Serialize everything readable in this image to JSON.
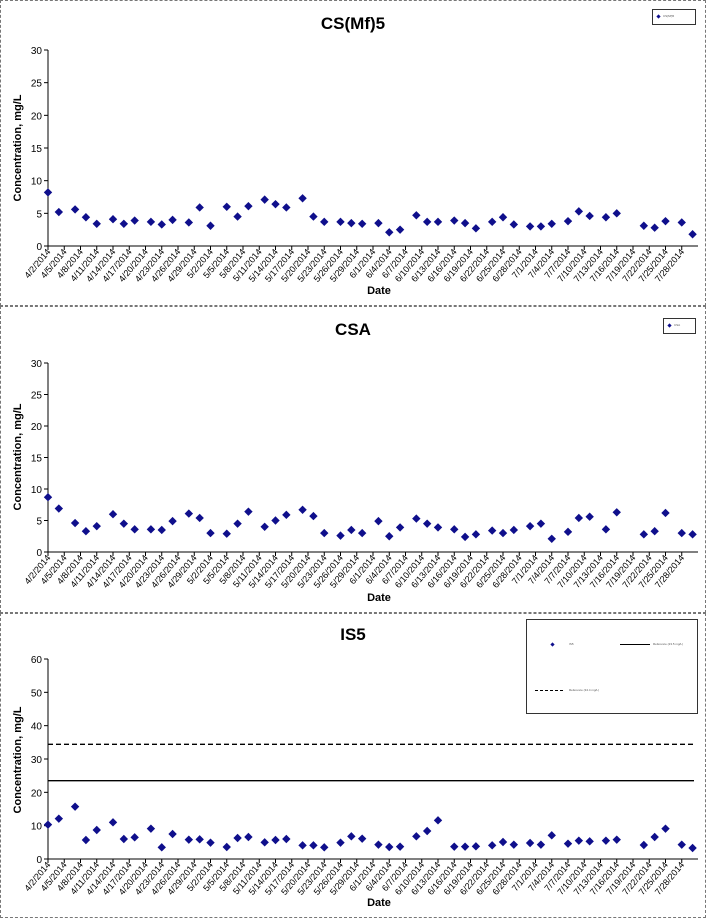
{
  "charts": [
    {
      "title": "CS(Mf)5",
      "ylabel": "Concentration, mg/L",
      "xlabel": "Date",
      "legend": {
        "series_label": "CS(Mf)5"
      },
      "y_ticks": [
        "0",
        "5",
        "10",
        "15",
        "20",
        "25",
        "30"
      ]
    },
    {
      "title": "CSA",
      "ylabel": "Concentration, mg/L",
      "xlabel": "Date",
      "legend": {
        "series_label": "CSA"
      },
      "y_ticks": [
        "0",
        "5",
        "10",
        "15",
        "20",
        "25",
        "30"
      ]
    },
    {
      "title": "IS5",
      "ylabel": "Concentration, mg/L",
      "xlabel": "Date",
      "legend": {
        "series_label": "IS5",
        "solid_label": "Reference (23.5 mg/L)",
        "dashed_label": "Reference (34.4 mg/L)"
      },
      "y_ticks": [
        "0",
        "10",
        "20",
        "30",
        "40",
        "50",
        "60"
      ]
    }
  ],
  "x_tick_labels": [
    "4/2/2014",
    "4/5/2014",
    "4/8/2014",
    "4/11/2014",
    "4/14/2014",
    "4/17/2014",
    "4/20/2014",
    "4/23/2014",
    "4/26/2014",
    "4/29/2014",
    "5/2/2014",
    "5/5/2014",
    "5/8/2014",
    "5/11/2014",
    "5/14/2014",
    "5/17/2014",
    "5/20/2014",
    "5/23/2014",
    "5/26/2014",
    "5/29/2014",
    "6/1/2014",
    "6/4/2014",
    "6/7/2014",
    "6/10/2014",
    "6/13/2014",
    "6/16/2014",
    "6/19/2014",
    "6/22/2014",
    "6/25/2014",
    "6/28/2014",
    "7/1/2014",
    "7/4/2014",
    "7/7/2014",
    "7/10/2014",
    "7/13/2014",
    "7/16/2014",
    "7/19/2014",
    "7/22/2014",
    "7/25/2014",
    "7/28/2014"
  ],
  "chart_data": [
    {
      "type": "scatter",
      "title": "CS(Mf)5",
      "xlabel": "Date",
      "ylabel": "Concentration, mg/L",
      "ylim": [
        0,
        30
      ],
      "xlim": [
        "4/2/2014",
        "7/30/2014"
      ],
      "grid": false,
      "legend_position": "top-right",
      "marker_color": "#0f0f8c",
      "series": [
        {
          "x": [
            "4/2/2014",
            "4/4/2014",
            "4/7/2014",
            "4/9/2014",
            "4/11/2014",
            "4/14/2014",
            "4/16/2014",
            "4/18/2014",
            "4/21/2014",
            "4/23/2014",
            "4/25/2014",
            "4/28/2014",
            "4/30/2014",
            "5/2/2014",
            "5/5/2014",
            "5/7/2014",
            "5/9/2014",
            "5/12/2014",
            "5/14/2014",
            "5/16/2014",
            "5/19/2014",
            "5/21/2014",
            "5/23/2014",
            "5/26/2014",
            "5/28/2014",
            "5/30/2014",
            "6/2/2014",
            "6/4/2014",
            "6/6/2014",
            "6/9/2014",
            "6/11/2014",
            "6/13/2014",
            "6/16/2014",
            "6/18/2014",
            "6/20/2014",
            "6/23/2014",
            "6/25/2014",
            "6/27/2014",
            "6/30/2014",
            "7/2/2014",
            "7/4/2014",
            "7/7/2014",
            "7/9/2014",
            "7/11/2014",
            "7/14/2014",
            "7/16/2014",
            "7/21/2014",
            "7/23/2014",
            "7/25/2014",
            "7/28/2014",
            "7/30/2014"
          ],
          "y": [
            8.2,
            5.2,
            5.6,
            4.4,
            3.4,
            4.1,
            3.4,
            3.9,
            3.7,
            3.3,
            4.0,
            3.6,
            5.9,
            3.1,
            6.0,
            4.5,
            6.1,
            7.1,
            6.4,
            5.9,
            7.3,
            4.5,
            3.7,
            3.7,
            3.5,
            3.4,
            3.5,
            2.1,
            2.5,
            4.7,
            3.7,
            3.7,
            3.9,
            3.5,
            2.7,
            3.7,
            4.4,
            3.3,
            3.0,
            3.0,
            3.4,
            3.8,
            5.3,
            4.6,
            4.4,
            5.0,
            3.1,
            2.8,
            3.8,
            3.6,
            1.8
          ]
        }
      ]
    },
    {
      "type": "scatter",
      "title": "CSA",
      "xlabel": "Date",
      "ylabel": "Concentration, mg/L",
      "ylim": [
        0,
        30
      ],
      "xlim": [
        "4/2/2014",
        "7/30/2014"
      ],
      "grid": false,
      "legend_position": "top-right",
      "marker_color": "#0f0f8c",
      "series": [
        {
          "x": [
            "4/2/2014",
            "4/4/2014",
            "4/7/2014",
            "4/9/2014",
            "4/11/2014",
            "4/14/2014",
            "4/16/2014",
            "4/18/2014",
            "4/21/2014",
            "4/23/2014",
            "4/25/2014",
            "4/28/2014",
            "4/30/2014",
            "5/2/2014",
            "5/5/2014",
            "5/7/2014",
            "5/9/2014",
            "5/12/2014",
            "5/14/2014",
            "5/16/2014",
            "5/19/2014",
            "5/21/2014",
            "5/23/2014",
            "5/26/2014",
            "5/28/2014",
            "5/30/2014",
            "6/2/2014",
            "6/4/2014",
            "6/6/2014",
            "6/9/2014",
            "6/11/2014",
            "6/13/2014",
            "6/16/2014",
            "6/18/2014",
            "6/20/2014",
            "6/23/2014",
            "6/25/2014",
            "6/27/2014",
            "6/30/2014",
            "7/2/2014",
            "7/4/2014",
            "7/7/2014",
            "7/9/2014",
            "7/11/2014",
            "7/14/2014",
            "7/16/2014",
            "7/21/2014",
            "7/23/2014",
            "7/25/2014",
            "7/28/2014",
            "7/30/2014"
          ],
          "y": [
            8.7,
            6.9,
            4.6,
            3.3,
            4.1,
            6.0,
            4.5,
            3.6,
            3.6,
            3.5,
            4.9,
            6.1,
            5.4,
            3.0,
            2.9,
            4.5,
            6.4,
            4.0,
            5.0,
            5.9,
            6.7,
            5.7,
            3.0,
            2.6,
            3.5,
            3.0,
            4.9,
            2.5,
            3.9,
            5.3,
            4.5,
            3.9,
            3.6,
            2.4,
            2.8,
            3.4,
            3.0,
            3.5,
            4.1,
            4.5,
            2.1,
            3.2,
            5.4,
            5.6,
            3.6,
            6.3,
            2.8,
            3.3,
            6.2,
            3.0,
            2.8
          ]
        }
      ]
    },
    {
      "type": "scatter",
      "title": "IS5",
      "xlabel": "Date",
      "ylabel": "Concentration, mg/L",
      "ylim": [
        0,
        60
      ],
      "xlim": [
        "4/2/2014",
        "7/30/2014"
      ],
      "grid": false,
      "legend_position": "top-right",
      "marker_color": "#0f0f8c",
      "reference_lines": [
        {
          "style": "solid",
          "value": 23.5
        },
        {
          "style": "dashed",
          "value": 34.4
        }
      ],
      "series": [
        {
          "x": [
            "4/2/2014",
            "4/4/2014",
            "4/7/2014",
            "4/9/2014",
            "4/11/2014",
            "4/14/2014",
            "4/16/2014",
            "4/18/2014",
            "4/21/2014",
            "4/23/2014",
            "4/25/2014",
            "4/28/2014",
            "4/30/2014",
            "5/2/2014",
            "5/5/2014",
            "5/7/2014",
            "5/9/2014",
            "5/12/2014",
            "5/14/2014",
            "5/16/2014",
            "5/19/2014",
            "5/21/2014",
            "5/23/2014",
            "5/26/2014",
            "5/28/2014",
            "5/30/2014",
            "6/2/2014",
            "6/4/2014",
            "6/6/2014",
            "6/9/2014",
            "6/11/2014",
            "6/13/2014",
            "6/16/2014",
            "6/18/2014",
            "6/20/2014",
            "6/23/2014",
            "6/25/2014",
            "6/27/2014",
            "6/30/2014",
            "7/2/2014",
            "7/4/2014",
            "7/7/2014",
            "7/9/2014",
            "7/11/2014",
            "7/14/2014",
            "7/16/2014",
            "7/21/2014",
            "7/23/2014",
            "7/25/2014",
            "7/28/2014",
            "7/30/2014"
          ],
          "y": [
            10.3,
            12.1,
            15.7,
            5.7,
            8.7,
            11.0,
            6.0,
            6.5,
            9.1,
            3.5,
            7.5,
            5.8,
            5.9,
            4.9,
            3.6,
            6.3,
            6.6,
            5.0,
            5.7,
            6.0,
            4.1,
            4.1,
            3.5,
            4.9,
            6.8,
            6.1,
            4.3,
            3.6,
            3.7,
            6.8,
            8.4,
            11.6,
            3.7,
            3.7,
            3.8,
            4.1,
            5.1,
            4.3,
            4.8,
            4.3,
            7.1,
            4.6,
            5.5,
            5.3,
            5.5,
            5.8,
            4.2,
            6.6,
            9.1,
            4.3,
            3.3
          ]
        }
      ]
    }
  ]
}
